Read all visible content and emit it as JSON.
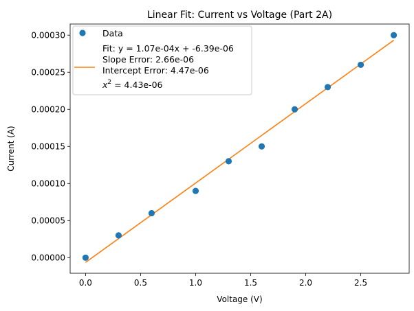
{
  "chart_data": {
    "type": "scatter",
    "title": "Linear Fit: Current vs Voltage (Part 2A)",
    "xlabel": "Voltage (V)",
    "ylabel": "Current (A)",
    "xlim": [
      -0.14,
      2.94
    ],
    "ylim": [
      -2.1e-05,
      0.000315
    ],
    "x_ticks": [
      0.0,
      0.5,
      1.0,
      1.5,
      2.0,
      2.5
    ],
    "x_tick_labels": [
      "0.0",
      "0.5",
      "1.0",
      "1.5",
      "2.0",
      "2.5"
    ],
    "y_ticks": [
      0.0,
      5e-05,
      0.0001,
      0.00015,
      0.0002,
      0.00025,
      0.0003
    ],
    "y_tick_labels": [
      "0.00000",
      "0.00005",
      "0.00010",
      "0.00015",
      "0.00020",
      "0.00025",
      "0.00030"
    ],
    "grid": false,
    "legend_position": "upper-left",
    "series": [
      {
        "name": "Data",
        "kind": "scatter",
        "color": "#1f77b4",
        "x": [
          0.0,
          0.3,
          0.6,
          1.0,
          1.3,
          1.6,
          1.9,
          2.2,
          2.5,
          2.8
        ],
        "y": [
          0.0,
          3e-05,
          6e-05,
          9e-05,
          0.00013,
          0.00015,
          0.0002,
          0.00023,
          0.00026,
          0.0003
        ]
      },
      {
        "name": "Fit: y = 1.07e-04x + -6.39e-06",
        "kind": "line",
        "color": "#ff7f0e",
        "slope": 0.000107,
        "intercept": -6.39e-06,
        "x_range": [
          0.0,
          2.8
        ],
        "extra_lines": [
          "Slope Error: 2.66e-06",
          "Intercept Error: 4.47e-06"
        ],
        "chi_label": "x",
        "chi_value": " = 4.43e-06"
      }
    ]
  }
}
